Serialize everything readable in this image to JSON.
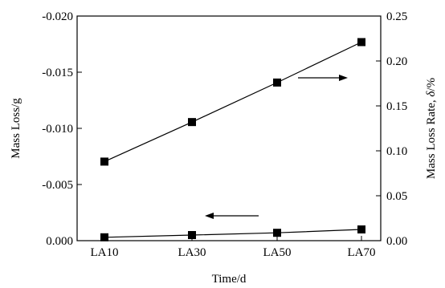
{
  "chart_data": {
    "type": "line",
    "categories": [
      "LA10",
      "LA30",
      "LA50",
      "LA70"
    ],
    "xlabel": "Time/d",
    "ylabel_left": "Mass Loss/g",
    "ylabel_right_prefix": "Mass Loss Rate, ",
    "ylabel_right_symbol": "δ",
    "ylabel_right_suffix": "/%",
    "left_axis": {
      "ylim": [
        0.0,
        -0.02
      ],
      "ticks": [
        0.0,
        -0.005,
        -0.01,
        -0.015,
        -0.02
      ],
      "tick_labels": [
        "0.000",
        "-0.005",
        "-0.010",
        "-0.015",
        "-0.020"
      ]
    },
    "right_axis": {
      "ylim": [
        0.0,
        0.25
      ],
      "ticks": [
        0.0,
        0.05,
        0.1,
        0.15,
        0.2,
        0.25
      ],
      "tick_labels": [
        "0.00",
        "0.05",
        "0.10",
        "0.15",
        "0.20",
        "0.25"
      ]
    },
    "series": [
      {
        "axis": "left",
        "marker": "square",
        "values": [
          -0.0003,
          -0.0005,
          -0.0007,
          -0.001
        ]
      },
      {
        "axis": "right",
        "marker": "square",
        "values": [
          0.088,
          0.132,
          0.176,
          0.221
        ]
      }
    ],
    "annotations": [
      {
        "type": "arrow",
        "direction": "right",
        "points_to": "right-axis"
      },
      {
        "type": "arrow",
        "direction": "left",
        "points_to": "left-axis"
      }
    ],
    "grid": false,
    "color": "#000000"
  }
}
